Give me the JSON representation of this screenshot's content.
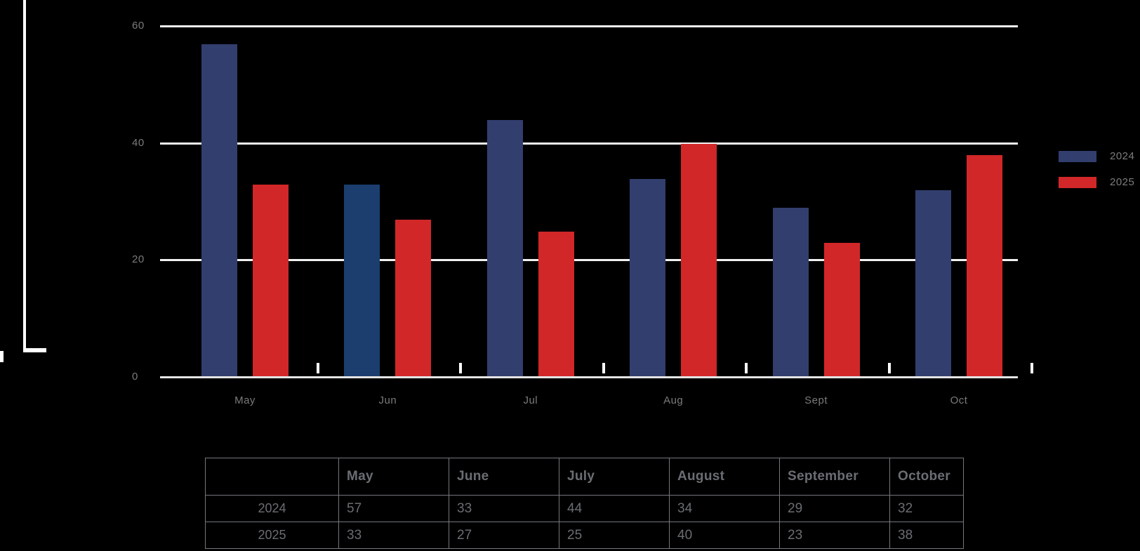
{
  "chart_data": {
    "type": "bar",
    "title": "",
    "xlabel": "",
    "ylabel": "",
    "categories": [
      "May",
      "Jun",
      "Jul",
      "Aug",
      "Sept",
      "Oct"
    ],
    "series": [
      {
        "name": "2024",
        "color": "#323e6e",
        "values": [
          57,
          33,
          44,
          34,
          29,
          32
        ]
      },
      {
        "name": "2025",
        "color": "#d22728",
        "values": [
          33,
          27,
          25,
          40,
          23,
          38
        ]
      }
    ],
    "highlight": {
      "series": "2024",
      "category": "Jun",
      "color": "#1b3e6f"
    },
    "yticks": [
      0,
      20,
      40,
      60
    ],
    "ylim": [
      0,
      60
    ],
    "grid": true,
    "legend_position": "right",
    "legend": [
      {
        "label": "2024",
        "color": "#323e6e"
      },
      {
        "label": "2025",
        "color": "#d22728"
      }
    ]
  },
  "table": {
    "headers": [
      "",
      "May",
      "June",
      "July",
      "August",
      "September",
      "October"
    ],
    "rows": [
      {
        "label": "2024",
        "cells": [
          "57",
          "33",
          "44",
          "34",
          "29",
          "32"
        ]
      },
      {
        "label": "2025",
        "cells": [
          "33",
          "27",
          "25",
          "40",
          "23",
          "38"
        ]
      }
    ]
  },
  "colors": {
    "background": "#000000",
    "gridline": "#f1f1f1",
    "axis_line": "#e4e4e4",
    "axis_label": "#7b7b7b",
    "table_border": "#75777c",
    "table_text": "#6a6d72"
  }
}
